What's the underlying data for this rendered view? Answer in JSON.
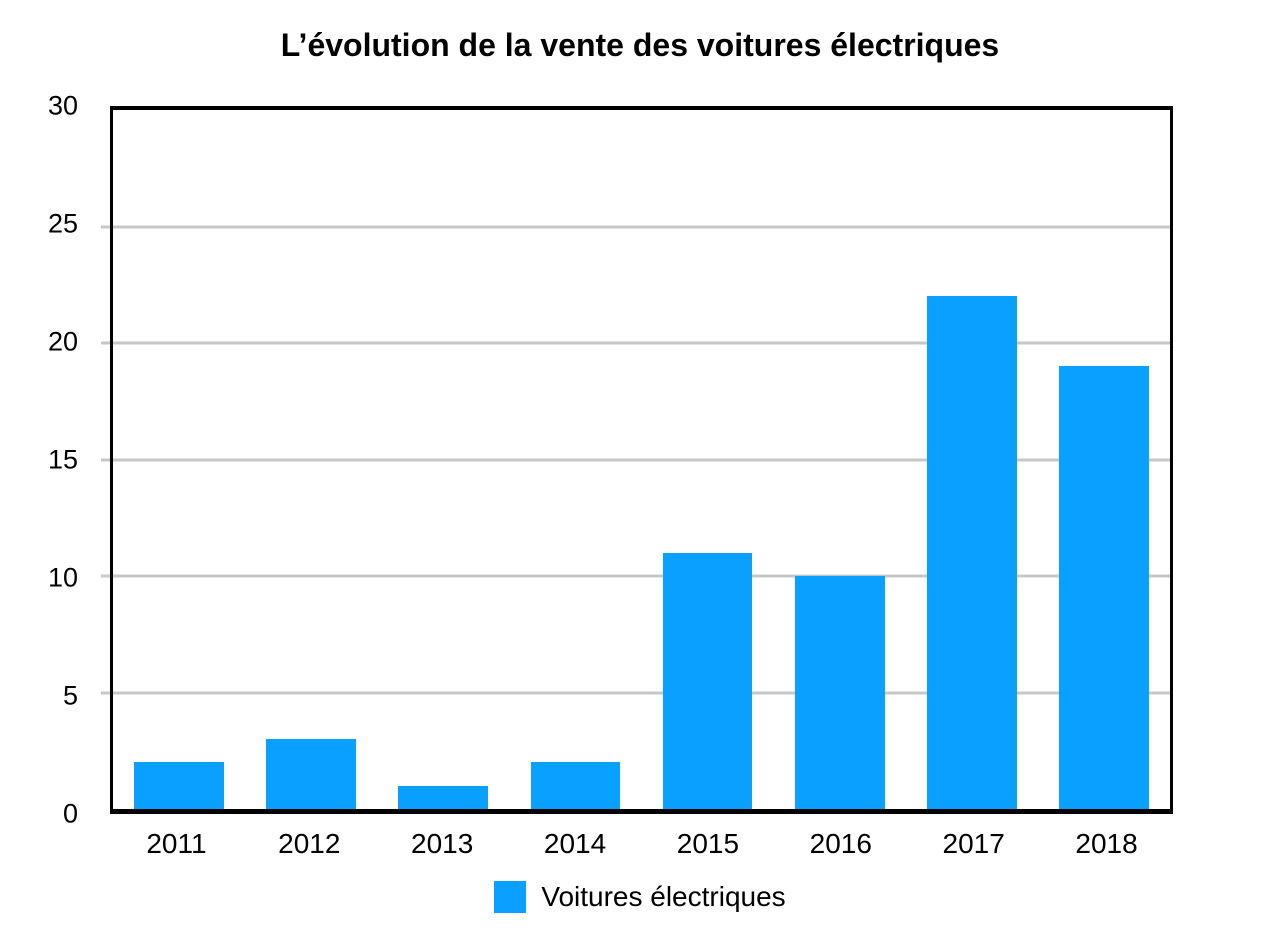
{
  "chart_data": {
    "type": "bar",
    "title": "L’évolution de la vente des voitures électriques",
    "categories": [
      "2011",
      "2012",
      "2013",
      "2014",
      "2015",
      "2016",
      "2017",
      "2018"
    ],
    "series": [
      {
        "name": "Voitures électriques",
        "values": [
          2,
          3,
          1,
          2,
          11,
          10,
          22,
          19
        ],
        "color": "#0AA0FF"
      }
    ],
    "xlabel": "",
    "ylabel": "",
    "ylim": [
      0,
      30
    ],
    "yticks": [
      0,
      5,
      10,
      15,
      20,
      25,
      30
    ],
    "grid": "horizontal",
    "gridline_color": "#C7C7C7",
    "axis_color": "#000000",
    "legend": {
      "position": "bottom",
      "entries": [
        "Voitures électriques"
      ]
    }
  }
}
